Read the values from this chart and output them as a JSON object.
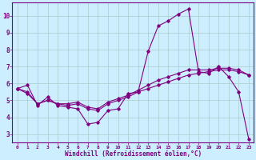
{
  "xlabel": "Windchill (Refroidissement éolien,°C)",
  "bg_color": "#cceeff",
  "line_color": "#800080",
  "grid_color": "#aacccc",
  "x_ticks": [
    0,
    1,
    2,
    3,
    4,
    5,
    6,
    7,
    8,
    9,
    10,
    11,
    12,
    13,
    14,
    15,
    16,
    17,
    18,
    19,
    20,
    21,
    22,
    23
  ],
  "y_ticks": [
    3,
    4,
    5,
    6,
    7,
    8,
    9,
    10
  ],
  "xlim": [
    -0.5,
    23.5
  ],
  "ylim": [
    2.5,
    10.8
  ],
  "series1_x": [
    0,
    1,
    2,
    3,
    4,
    5,
    6,
    7,
    8,
    9,
    10,
    11,
    12,
    13,
    14,
    15,
    16,
    17,
    18,
    19,
    20,
    21,
    22,
    23
  ],
  "series1_y": [
    5.7,
    5.9,
    4.7,
    5.2,
    4.7,
    4.6,
    4.5,
    3.6,
    3.7,
    4.4,
    4.5,
    5.4,
    5.5,
    7.9,
    9.4,
    9.7,
    10.1,
    10.4,
    6.7,
    6.6,
    7.0,
    6.4,
    5.5,
    2.7
  ],
  "series2_x": [
    0,
    1,
    2,
    3,
    4,
    5,
    6,
    7,
    8,
    9,
    10,
    11,
    12,
    13,
    14,
    15,
    16,
    17,
    18,
    19,
    20,
    21,
    22,
    23
  ],
  "series2_y": [
    5.7,
    5.5,
    4.8,
    5.0,
    4.8,
    4.7,
    4.8,
    4.5,
    4.4,
    4.8,
    5.0,
    5.2,
    5.5,
    5.7,
    5.9,
    6.1,
    6.3,
    6.5,
    6.6,
    6.7,
    6.8,
    6.8,
    6.7,
    6.5
  ],
  "series3_x": [
    0,
    1,
    2,
    3,
    4,
    5,
    6,
    7,
    8,
    9,
    10,
    11,
    12,
    13,
    14,
    15,
    16,
    17,
    18,
    19,
    20,
    21,
    22,
    23
  ],
  "series3_y": [
    5.7,
    5.4,
    4.8,
    5.0,
    4.8,
    4.8,
    4.9,
    4.6,
    4.5,
    4.9,
    5.1,
    5.3,
    5.6,
    5.9,
    6.2,
    6.4,
    6.6,
    6.8,
    6.8,
    6.8,
    6.9,
    6.9,
    6.8,
    6.5
  ],
  "tick_color": "#800080",
  "spine_color": "#800080"
}
